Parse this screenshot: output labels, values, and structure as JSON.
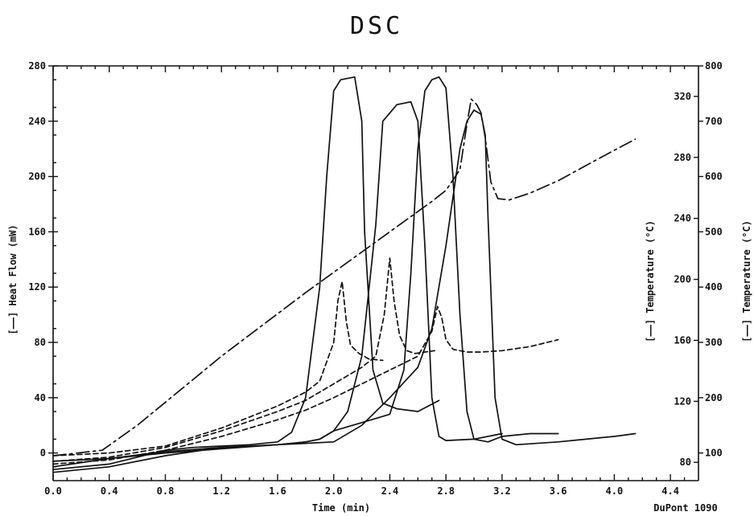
{
  "chart_data": {
    "type": "line",
    "title": "DSC",
    "xlabel": "Time (min)",
    "ylabel_left": "[——] Heat Flow (mW)",
    "ylabel_right_inner": "[——] Temperature (°C)",
    "ylabel_right_outer": "[——] Temperature (°C)",
    "footer": "DuPont 1090",
    "x_ticks": [
      "0.0",
      "0.4",
      "0.8",
      "1.2",
      "1.6",
      "2.0",
      "2.4",
      "2.8",
      "3.2",
      "3.6",
      "4.0",
      "4.4"
    ],
    "y_left_ticks": [
      "0",
      "40",
      "80",
      "120",
      "160",
      "200",
      "240",
      "280"
    ],
    "y_right_inner_ticks": [
      "80",
      "120",
      "160",
      "200",
      "240",
      "280",
      "320"
    ],
    "y_right_outer_ticks": [
      "100",
      "200",
      "300",
      "400",
      "500",
      "600",
      "700",
      "800"
    ],
    "xlim": [
      0,
      4.6
    ],
    "ylim_left": [
      -20,
      280
    ],
    "ylim_right_inner": [
      68,
      340
    ],
    "ylim_right_outer": [
      50,
      800
    ],
    "grid": false,
    "series": [
      {
        "style": "solid",
        "x": [
          0.0,
          0.4,
          0.8,
          1.0,
          1.2,
          1.4,
          1.6,
          1.7,
          1.8,
          1.9,
          1.95,
          2.0,
          2.05,
          2.15,
          2.2,
          2.22,
          2.28,
          2.35,
          2.45,
          2.6,
          2.75
        ],
        "y": [
          -12,
          -8,
          2,
          4,
          5,
          6,
          8,
          15,
          40,
          120,
          200,
          262,
          270,
          272,
          240,
          160,
          60,
          36,
          32,
          30,
          38
        ]
      },
      {
        "style": "solid",
        "x": [
          0.0,
          0.4,
          0.8,
          1.2,
          1.6,
          1.8,
          1.9,
          2.0,
          2.1,
          2.2,
          2.3,
          2.35,
          2.45,
          2.55,
          2.6,
          2.65,
          2.7,
          2.75,
          2.8,
          3.0,
          3.2
        ],
        "y": [
          -6,
          -4,
          1,
          4,
          6,
          8,
          10,
          16,
          30,
          70,
          165,
          240,
          252,
          254,
          240,
          150,
          40,
          12,
          9,
          10,
          14
        ]
      },
      {
        "style": "solid",
        "x": [
          0.0,
          0.4,
          0.8,
          1.2,
          1.6,
          1.8,
          1.9,
          2.0,
          2.2,
          2.4,
          2.5,
          2.55,
          2.6,
          2.65,
          2.7,
          2.75,
          2.8,
          2.85,
          2.9,
          2.95,
          3.0,
          3.1,
          3.2,
          3.4,
          3.6
        ],
        "y": [
          -10,
          -4,
          0,
          3,
          6,
          8,
          10,
          16,
          22,
          28,
          60,
          130,
          220,
          262,
          270,
          272,
          264,
          200,
          100,
          30,
          10,
          8,
          12,
          14,
          14
        ]
      },
      {
        "style": "solid",
        "x": [
          0.0,
          0.4,
          0.8,
          1.2,
          1.6,
          1.8,
          2.0,
          2.2,
          2.4,
          2.6,
          2.7,
          2.8,
          2.9,
          2.95,
          3.0,
          3.05,
          3.08,
          3.1,
          3.15,
          3.2,
          3.3,
          3.6,
          3.8,
          4.0,
          4.15
        ],
        "y": [
          -14,
          -10,
          -2,
          4,
          6,
          7,
          8,
          20,
          40,
          62,
          90,
          150,
          220,
          240,
          248,
          245,
          230,
          170,
          40,
          10,
          6,
          8,
          10,
          12,
          14
        ]
      },
      {
        "style": "dashed",
        "x": [
          0.0,
          0.4,
          0.8,
          1.2,
          1.6,
          1.8,
          1.9,
          2.0,
          2.03,
          2.06,
          2.09,
          2.12,
          2.18,
          2.25,
          2.35
        ],
        "y": [
          -2,
          0,
          5,
          18,
          34,
          44,
          52,
          80,
          110,
          124,
          95,
          78,
          72,
          68,
          67
        ]
      },
      {
        "style": "dashed",
        "x": [
          0.0,
          0.4,
          0.8,
          1.2,
          1.6,
          1.8,
          2.0,
          2.2,
          2.3,
          2.36,
          2.4,
          2.43,
          2.47,
          2.52,
          2.58,
          2.65,
          2.72
        ],
        "y": [
          -6,
          -3,
          4,
          16,
          30,
          38,
          50,
          62,
          70,
          100,
          141,
          110,
          85,
          74,
          72,
          73,
          74
        ]
      },
      {
        "style": "dashed",
        "x": [
          0.0,
          0.4,
          0.8,
          1.2,
          1.6,
          1.8,
          2.0,
          2.2,
          2.4,
          2.6,
          2.7,
          2.74,
          2.77,
          2.8,
          2.85,
          2.95,
          3.05,
          3.2,
          3.4,
          3.6
        ],
        "y": [
          -8,
          -5,
          2,
          12,
          24,
          31,
          40,
          50,
          60,
          70,
          88,
          106,
          98,
          82,
          75,
          73,
          73,
          74,
          77,
          82
        ]
      },
      {
        "style": "dashdot",
        "x": [
          0.0,
          0.35,
          0.6,
          0.9,
          1.2,
          1.5,
          1.8,
          2.1,
          2.4,
          2.7,
          2.8,
          2.9,
          2.95,
          2.98,
          3.02,
          3.05,
          3.08,
          3.12,
          3.17,
          3.25,
          3.4,
          3.6,
          3.8,
          4.0,
          4.15
        ],
        "y": [
          -2,
          2,
          20,
          45,
          70,
          93,
          116,
          138,
          160,
          182,
          190,
          205,
          238,
          256,
          252,
          246,
          228,
          196,
          184,
          183,
          188,
          197,
          208,
          219,
          227
        ]
      }
    ]
  }
}
